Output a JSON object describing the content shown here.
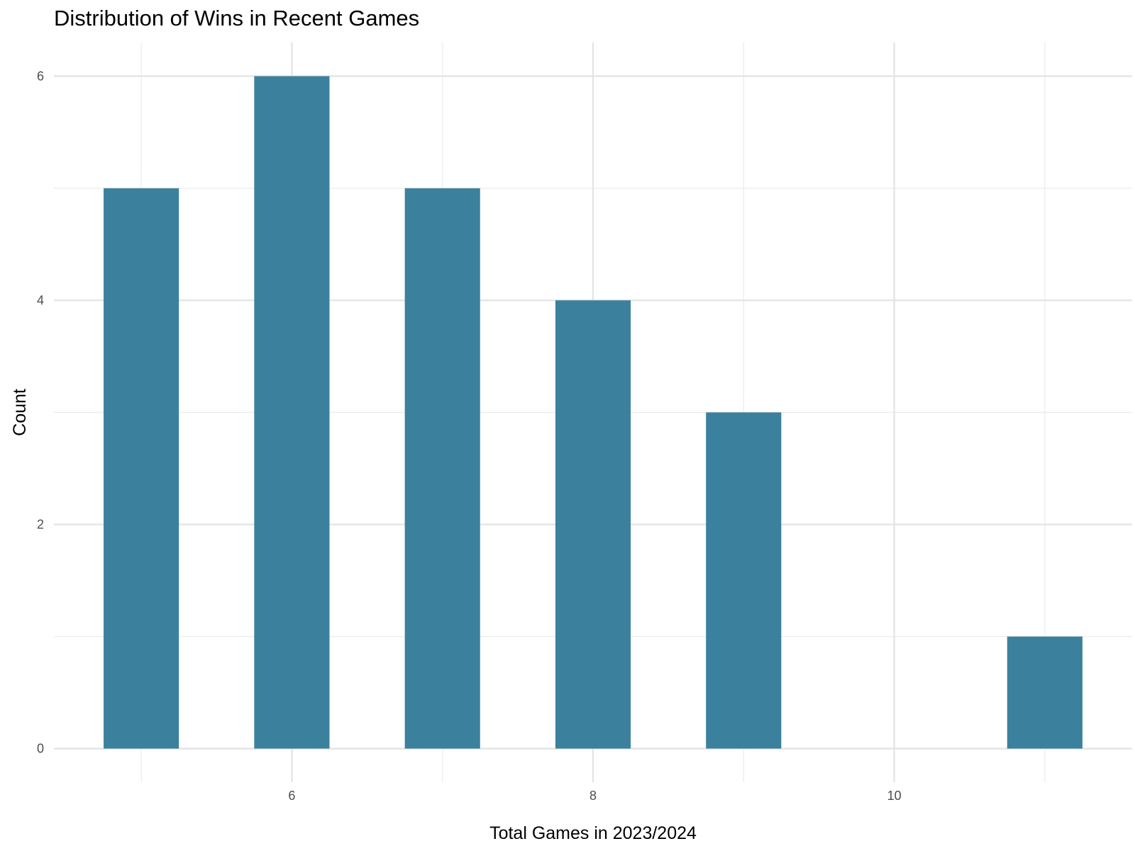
{
  "chart_data": {
    "type": "bar",
    "title": "Distribution of Wins in Recent Games",
    "xlabel": "Total Games in 2023/2024",
    "ylabel": "Count",
    "x": [
      5,
      6,
      7,
      8,
      9,
      11
    ],
    "values": [
      5,
      6,
      5,
      4,
      3,
      1
    ],
    "xlim": [
      4.42,
      11.58
    ],
    "ylim": [
      -0.3,
      6.3
    ],
    "x_ticks": [
      6,
      8,
      10
    ],
    "y_ticks": [
      0,
      2,
      4,
      6
    ],
    "x_tick_labels": [
      "6",
      "8",
      "10"
    ],
    "y_tick_labels": [
      "0",
      "2",
      "4",
      "6"
    ],
    "bar_color": "#3B819E",
    "grid": true,
    "legend": "none"
  }
}
